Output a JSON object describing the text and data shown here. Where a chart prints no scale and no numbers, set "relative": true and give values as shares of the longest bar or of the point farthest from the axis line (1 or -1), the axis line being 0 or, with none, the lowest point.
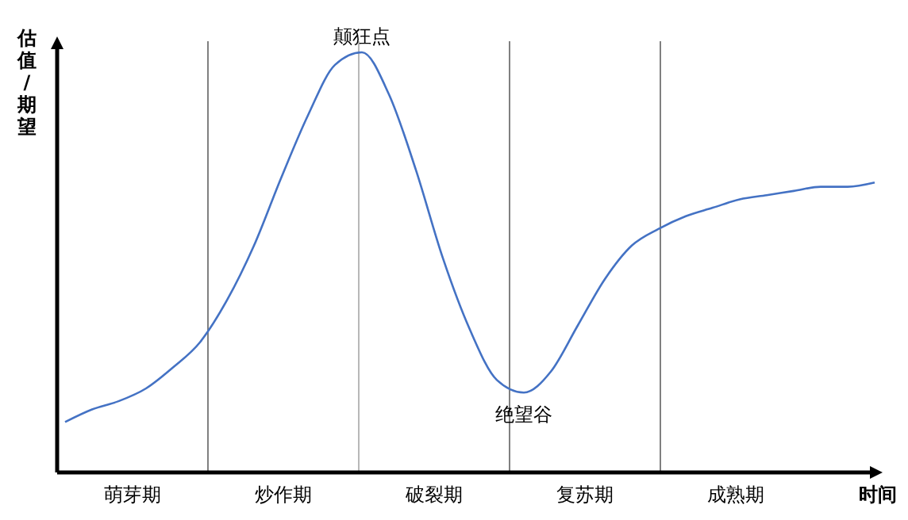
{
  "chart_data": {
    "type": "line",
    "relative": true,
    "xlabel": "时间",
    "ylabel": "估值/期望",
    "categories": [
      null,
      null,
      null,
      null,
      null,
      null,
      null,
      null,
      null,
      null,
      null,
      null,
      null,
      null,
      null,
      null,
      null,
      null,
      null,
      null,
      null,
      null,
      null,
      null,
      null,
      null,
      null,
      null,
      null,
      null,
      null
    ],
    "series": [
      {
        "color": "#4472c4",
        "values": [
          0.12,
          0.15,
          0.17,
          0.2,
          0.25,
          0.31,
          0.41,
          0.54,
          0.7,
          0.85,
          0.97,
          1,
          0.9,
          0.72,
          0.51,
          0.34,
          0.22,
          0.19,
          0.24,
          0.35,
          0.46,
          0.54,
          0.58,
          0.61,
          0.63,
          0.65,
          0.66,
          0.67,
          0.68,
          0.68,
          0.69
        ]
      }
    ],
    "annotations": [
      "萌芽期",
      "炒作期",
      "破裂期",
      "复苏期",
      "成熟期",
      {
        "text": "颠狂点",
        "y": 1
      },
      {
        "text": "绝望谷",
        "y": 0.19
      }
    ],
    "marker": "none",
    "line_style": "solid"
  }
}
